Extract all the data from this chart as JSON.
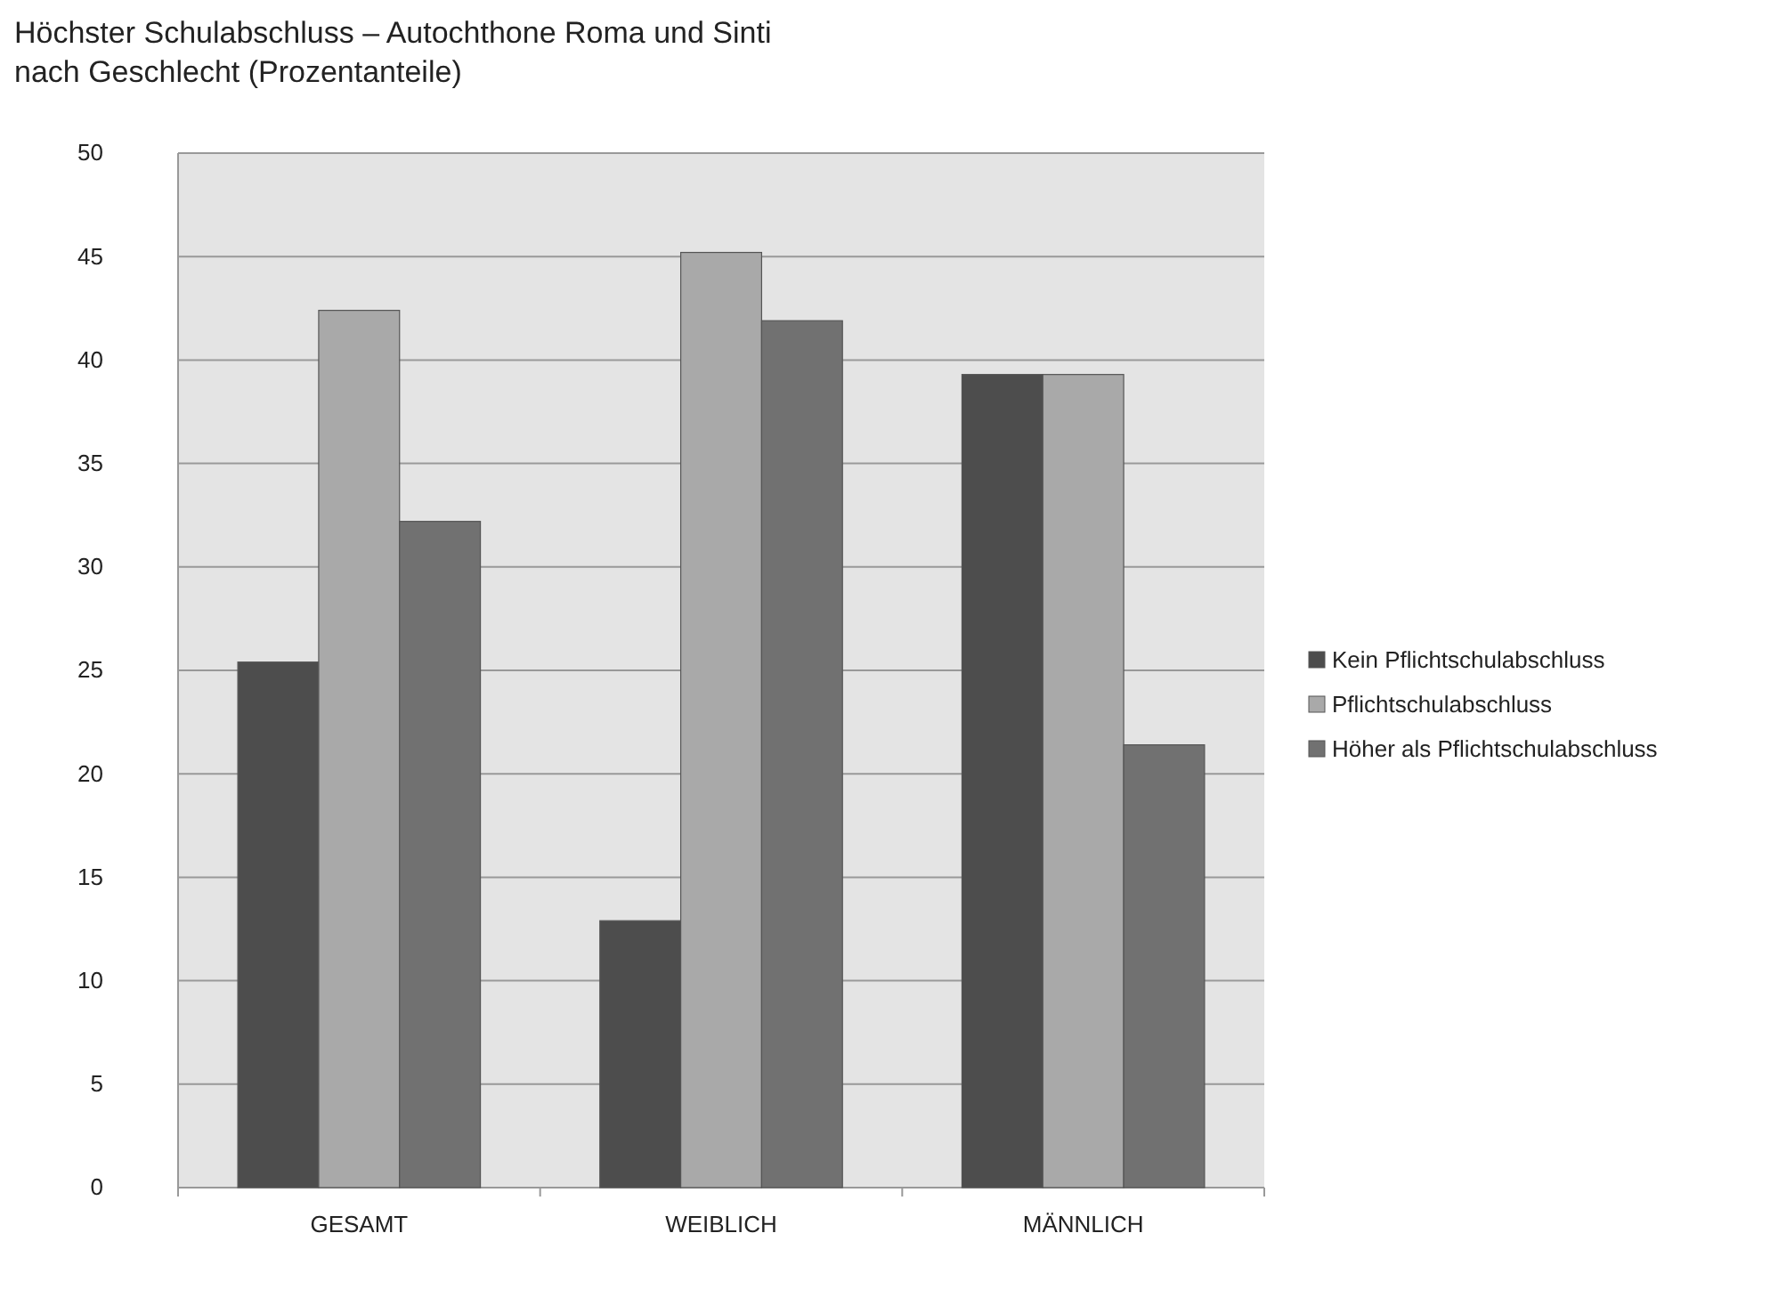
{
  "chart_data": {
    "type": "bar",
    "title": "Höchster Schulabschluss – Autochthone Roma und Sinti\nnach Geschlecht (Prozentanteile)",
    "categories": [
      "GESAMT",
      "WEIBLICH",
      "MÄNNLICH"
    ],
    "series": [
      {
        "name": "Kein Pflichtschulabschluss",
        "color": "#4d4d4d",
        "values": [
          25.4,
          12.9,
          39.3
        ]
      },
      {
        "name": "Pflichtschulabschluss",
        "color": "#a9a9a9",
        "values": [
          42.4,
          45.2,
          39.3
        ]
      },
      {
        "name": "Höher als Pflichtschulabschluss",
        "color": "#717171",
        "values": [
          32.2,
          41.9,
          21.4
        ]
      }
    ],
    "ylim": [
      0,
      50
    ],
    "yticks": [
      0,
      5,
      10,
      15,
      20,
      25,
      30,
      35,
      40,
      45,
      50
    ],
    "grid": "y",
    "legend": "right"
  }
}
